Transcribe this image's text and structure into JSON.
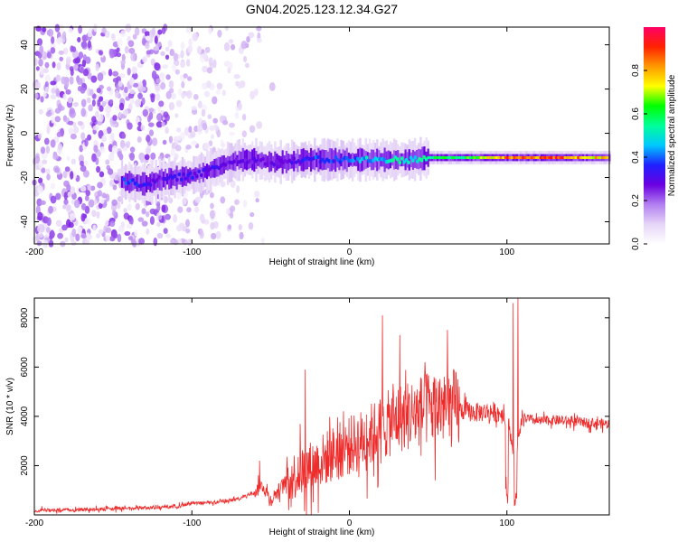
{
  "figure_title": "GN04.2025.123.12.34.G27",
  "colors": {
    "snr_line": "#ee2c2c",
    "colormap": [
      "#ffffff",
      "#e6d5f7",
      "#b27ff0",
      "#6a00e0",
      "#1f1fff",
      "#00c8ff",
      "#00ff99",
      "#00ff00",
      "#ffff00",
      "#ff9900",
      "#ff2200",
      "#ff0066"
    ]
  },
  "chart_data": [
    {
      "type": "heatmap",
      "title": "",
      "xlabel": "Height of straight line (km)",
      "ylabel": "Frequency (Hz)",
      "xlim": [
        -200,
        165
      ],
      "ylim": [
        -50,
        48
      ],
      "xticks": [
        -200,
        -100,
        0,
        100
      ],
      "yticks": [
        -40,
        -20,
        0,
        20,
        40
      ],
      "grid": false,
      "colorbar": {
        "label": "Normalized spectral amplitude",
        "range": [
          0.0,
          1.0
        ],
        "ticks": [
          0.0,
          0.2,
          0.4,
          0.6,
          0.8
        ]
      },
      "ridge": {
        "x": [
          -140,
          -130,
          -120,
          -110,
          -100,
          -90,
          -80,
          -70,
          -60,
          -50,
          -40,
          -30,
          -20,
          -10,
          0,
          10,
          20,
          30,
          40,
          50,
          60,
          70,
          80,
          90,
          100,
          110,
          120,
          130,
          140,
          150,
          160
        ],
        "freq": [
          -22,
          -23,
          -21,
          -20,
          -19,
          -17,
          -14,
          -12,
          -12,
          -13,
          -13,
          -12,
          -12,
          -12,
          -12,
          -12,
          -12,
          -12,
          -12,
          -11,
          -11,
          -11,
          -11,
          -11,
          -11,
          -11,
          -11,
          -11,
          -11,
          -11,
          -11
        ],
        "amplitude": [
          0.4,
          0.35,
          0.3,
          0.35,
          0.35,
          0.35,
          0.3,
          0.3,
          0.3,
          0.3,
          0.3,
          0.35,
          0.4,
          0.4,
          0.4,
          0.5,
          0.5,
          0.55,
          0.55,
          0.6,
          0.6,
          0.6,
          0.7,
          0.8,
          0.9,
          0.9,
          0.95,
          0.95,
          0.9,
          0.85,
          0.8
        ]
      },
      "noise_region_x": [
        -200,
        -85
      ]
    },
    {
      "type": "line",
      "title": "",
      "xlabel": "Height of straight line (km)",
      "ylabel": "SNR (10 * v/v)",
      "xlim": [
        -200,
        165
      ],
      "ylim": [
        0,
        8800
      ],
      "xticks": [
        -200,
        -100,
        0,
        100
      ],
      "yticks": [
        2000,
        4000,
        6000,
        8000
      ],
      "grid": false,
      "series": [
        {
          "x": [
            -200,
            -180,
            -160,
            -140,
            -120,
            -110,
            -100,
            -90,
            -80,
            -70,
            -60,
            -55,
            -50,
            -45,
            -40,
            -30,
            -20,
            -10,
            0,
            10,
            20,
            30,
            40,
            50,
            60,
            70,
            80,
            90,
            100,
            105,
            110,
            120,
            130,
            140,
            150,
            160,
            165
          ],
          "values": [
            170,
            200,
            230,
            270,
            300,
            350,
            450,
            500,
            550,
            650,
            950,
            1200,
            600,
            1000,
            1400,
            1800,
            2100,
            2500,
            2800,
            3100,
            3500,
            3900,
            4100,
            4300,
            4400,
            4250,
            4150,
            4200,
            4050,
            2200,
            3950,
            3800,
            3850,
            3800,
            3750,
            3700,
            3700
          ]
        }
      ],
      "spikes": [
        {
          "x": -57,
          "value": 2200
        },
        {
          "x": -28,
          "value": 5900
        },
        {
          "x": 21,
          "value": 8100
        },
        {
          "x": 32,
          "value": 7300
        },
        {
          "x": 48,
          "value": 6200
        },
        {
          "x": 104,
          "value": 8600
        },
        {
          "x": 107,
          "value": 8800
        }
      ]
    }
  ]
}
